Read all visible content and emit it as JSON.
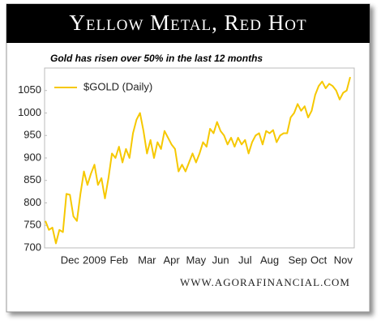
{
  "chart_data": {
    "type": "line",
    "title": "Yellow Metal, Red Hot",
    "subtitle": "Gold has risen over 50% in the last 12 months",
    "source": "WWW.AGORAFINANCIAL.COM",
    "categories": [
      null,
      null,
      null,
      null,
      null,
      null,
      null,
      "Dec",
      null,
      null,
      null,
      null,
      null,
      null,
      "2009",
      null,
      null,
      null,
      null,
      null,
      null,
      "Feb",
      null,
      null,
      null,
      null,
      null,
      null,
      null,
      "Mar",
      null,
      null,
      null,
      null,
      null,
      null,
      "Apr",
      null,
      null,
      null,
      null,
      null,
      null,
      "May",
      null,
      null,
      null,
      null,
      null,
      null,
      "Jun",
      null,
      null,
      null,
      null,
      null,
      null,
      "Jul",
      null,
      null,
      null,
      null,
      null,
      null,
      "Aug",
      null,
      null,
      null,
      null,
      null,
      null,
      null,
      "Sep",
      null,
      null,
      null,
      null,
      null,
      "Oct",
      null,
      null,
      null,
      null,
      null,
      null,
      "Nov",
      null,
      null
    ],
    "series": [
      {
        "name": "$GOLD (Daily)",
        "color": "#f6c800",
        "values": [
          760,
          740,
          745,
          710,
          740,
          735,
          820,
          818,
          770,
          760,
          820,
          870,
          840,
          865,
          885,
          840,
          855,
          810,
          855,
          910,
          900,
          925,
          890,
          920,
          900,
          955,
          985,
          1000,
          960,
          910,
          940,
          900,
          935,
          920,
          960,
          945,
          930,
          920,
          870,
          885,
          870,
          890,
          910,
          890,
          910,
          935,
          925,
          965,
          955,
          980,
          960,
          950,
          930,
          945,
          925,
          945,
          930,
          940,
          910,
          935,
          950,
          955,
          930,
          960,
          955,
          962,
          935,
          950,
          955,
          955,
          990,
          1000,
          1020,
          1005,
          1015,
          990,
          1005,
          1040,
          1060,
          1070,
          1055,
          1065,
          1060,
          1050,
          1030,
          1045,
          1050,
          1080
        ]
      }
    ],
    "ylim": [
      700,
      1100
    ],
    "yticks": [
      700,
      750,
      800,
      850,
      900,
      950,
      1000,
      1050
    ],
    "legend": "upper left",
    "grid": false
  }
}
